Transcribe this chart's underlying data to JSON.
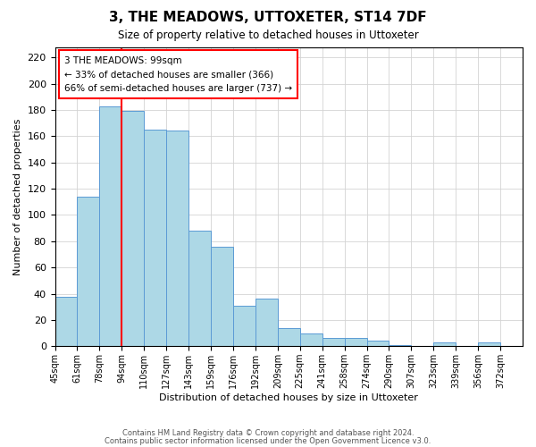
{
  "title": "3, THE MEADOWS, UTTOXETER, ST14 7DF",
  "subtitle": "Size of property relative to detached houses in Uttoxeter",
  "xlabel": "Distribution of detached houses by size in Uttoxeter",
  "ylabel": "Number of detached properties",
  "footer_lines": [
    "Contains HM Land Registry data © Crown copyright and database right 2024.",
    "Contains public sector information licensed under the Open Government Licence v3.0."
  ],
  "bin_labels": [
    "45sqm",
    "61sqm",
    "78sqm",
    "94sqm",
    "110sqm",
    "127sqm",
    "143sqm",
    "159sqm",
    "176sqm",
    "192sqm",
    "209sqm",
    "225sqm",
    "241sqm",
    "258sqm",
    "274sqm",
    "290sqm",
    "307sqm",
    "323sqm",
    "339sqm",
    "356sqm",
    "372sqm"
  ],
  "bar_heights": [
    38,
    114,
    183,
    179,
    165,
    164,
    88,
    76,
    31,
    36,
    14,
    10,
    6,
    6,
    4,
    1,
    0,
    3,
    0,
    3,
    0
  ],
  "bar_color": "#add8e6",
  "bar_edge_color": "#5b9bd5",
  "vline_x": 3,
  "vline_color": "red",
  "annotation_text_line1": "3 THE MEADOWS: 99sqm",
  "annotation_text_line2": "← 33% of detached houses are smaller (366)",
  "annotation_text_line3": "66% of semi-detached houses are larger (737) →",
  "ylim": [
    0,
    228
  ],
  "yticks": [
    0,
    20,
    40,
    60,
    80,
    100,
    120,
    140,
    160,
    180,
    200,
    220
  ]
}
